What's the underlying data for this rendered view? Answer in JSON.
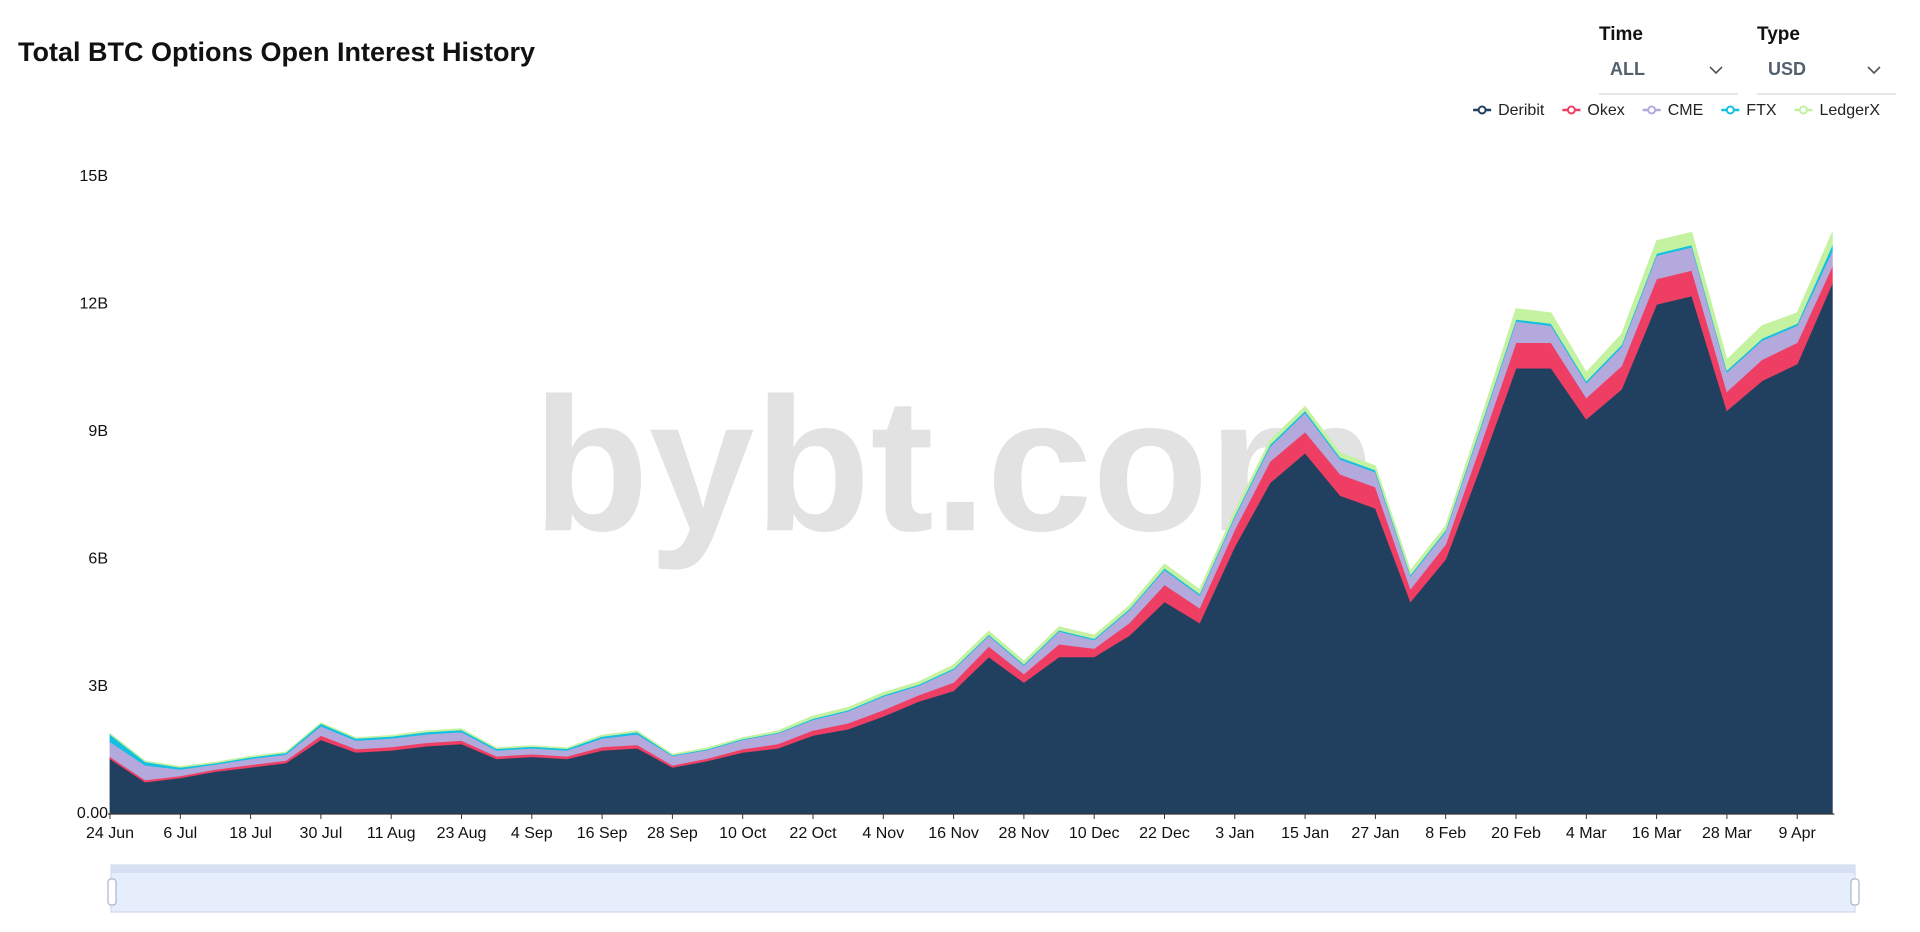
{
  "chart_data": {
    "type": "stacked-area",
    "title": "Total BTC Options Open Interest History",
    "controls": {
      "time_label": "Time",
      "time_value": "ALL",
      "type_label": "Type",
      "type_value": "USD"
    },
    "watermark": "bybt.com",
    "categories": [
      "24 Jun",
      null,
      "6 Jul",
      null,
      "18 Jul",
      null,
      "30 Jul",
      null,
      "11 Aug",
      null,
      "23 Aug",
      null,
      "4 Sep",
      null,
      "16 Sep",
      null,
      "28 Sep",
      null,
      "10 Oct",
      null,
      "22 Oct",
      null,
      "4 Nov",
      null,
      "16 Nov",
      null,
      "28 Nov",
      null,
      "10 Dec",
      null,
      "22 Dec",
      null,
      "3 Jan",
      null,
      "15 Jan",
      null,
      "27 Jan",
      null,
      "8 Feb",
      null,
      "20 Feb",
      null,
      "4 Mar",
      null,
      "16 Mar",
      null,
      "28 Mar",
      null,
      "9 Apr",
      null
    ],
    "series": [
      {
        "name": "Deribit",
        "color": "#21405f",
        "values": [
          1.3,
          0.75,
          0.85,
          1.0,
          1.1,
          1.2,
          1.75,
          1.45,
          1.5,
          1.6,
          1.65,
          1.3,
          1.35,
          1.3,
          1.5,
          1.55,
          1.1,
          1.25,
          1.45,
          1.55,
          1.85,
          2.0,
          2.3,
          2.65,
          2.9,
          3.7,
          3.1,
          3.7,
          3.7,
          4.2,
          5.0,
          4.5,
          6.3,
          7.8,
          8.5,
          7.5,
          7.2,
          5.0,
          6.0,
          8.2,
          10.5,
          10.5,
          9.3,
          10.0,
          12.0,
          12.2,
          9.5,
          10.2,
          10.6,
          12.5
        ]
      },
      {
        "name": "Okex",
        "color": "#ee3e63",
        "values": [
          0.05,
          0.05,
          0.05,
          0.05,
          0.06,
          0.06,
          0.1,
          0.08,
          0.08,
          0.08,
          0.08,
          0.06,
          0.06,
          0.06,
          0.08,
          0.08,
          0.05,
          0.06,
          0.08,
          0.1,
          0.12,
          0.14,
          0.15,
          0.15,
          0.2,
          0.25,
          0.2,
          0.3,
          0.2,
          0.3,
          0.4,
          0.35,
          0.4,
          0.5,
          0.5,
          0.5,
          0.5,
          0.3,
          0.35,
          0.5,
          0.6,
          0.6,
          0.5,
          0.55,
          0.6,
          0.6,
          0.45,
          0.5,
          0.5,
          0.4
        ]
      },
      {
        "name": "CME",
        "color": "#b3a9dd",
        "values": [
          0.35,
          0.35,
          0.15,
          0.12,
          0.14,
          0.14,
          0.22,
          0.2,
          0.2,
          0.2,
          0.2,
          0.14,
          0.14,
          0.14,
          0.2,
          0.25,
          0.22,
          0.2,
          0.22,
          0.25,
          0.25,
          0.28,
          0.32,
          0.22,
          0.3,
          0.25,
          0.2,
          0.3,
          0.2,
          0.3,
          0.35,
          0.3,
          0.3,
          0.35,
          0.45,
          0.35,
          0.35,
          0.3,
          0.3,
          0.4,
          0.5,
          0.4,
          0.35,
          0.45,
          0.55,
          0.55,
          0.45,
          0.45,
          0.4,
          0.35
        ]
      },
      {
        "name": "FTX",
        "color": "#15c0e0",
        "values": [
          0.18,
          0.08,
          0.05,
          0.03,
          0.04,
          0.04,
          0.06,
          0.05,
          0.05,
          0.05,
          0.05,
          0.04,
          0.04,
          0.04,
          0.05,
          0.05,
          0.02,
          0.02,
          0.02,
          0.02,
          0.03,
          0.03,
          0.03,
          0.03,
          0.03,
          0.03,
          0.03,
          0.03,
          0.03,
          0.03,
          0.04,
          0.04,
          0.04,
          0.05,
          0.05,
          0.05,
          0.05,
          0.04,
          0.04,
          0.05,
          0.05,
          0.05,
          0.05,
          0.05,
          0.05,
          0.05,
          0.05,
          0.05,
          0.05,
          0.15
        ]
      },
      {
        "name": "LedgerX",
        "color": "#c4f2a0",
        "values": [
          0.02,
          0.02,
          0.02,
          0.02,
          0.02,
          0.02,
          0.02,
          0.02,
          0.02,
          0.03,
          0.03,
          0.02,
          0.02,
          0.02,
          0.03,
          0.03,
          0.02,
          0.03,
          0.03,
          0.04,
          0.06,
          0.06,
          0.06,
          0.06,
          0.08,
          0.08,
          0.07,
          0.08,
          0.08,
          0.08,
          0.1,
          0.1,
          0.1,
          0.1,
          0.1,
          0.1,
          0.1,
          0.1,
          0.1,
          0.15,
          0.25,
          0.25,
          0.2,
          0.25,
          0.3,
          0.3,
          0.25,
          0.3,
          0.25,
          0.3
        ]
      }
    ],
    "ylim": [
      0,
      15
    ],
    "yticks": [
      {
        "value": 0,
        "label": "0.00"
      },
      {
        "value": 3,
        "label": "3B"
      },
      {
        "value": 6,
        "label": "6B"
      },
      {
        "value": 9,
        "label": "9B"
      },
      {
        "value": 12,
        "label": "12B"
      },
      {
        "value": 15,
        "label": "15B"
      }
    ],
    "grid": false,
    "legend": "top-right"
  }
}
